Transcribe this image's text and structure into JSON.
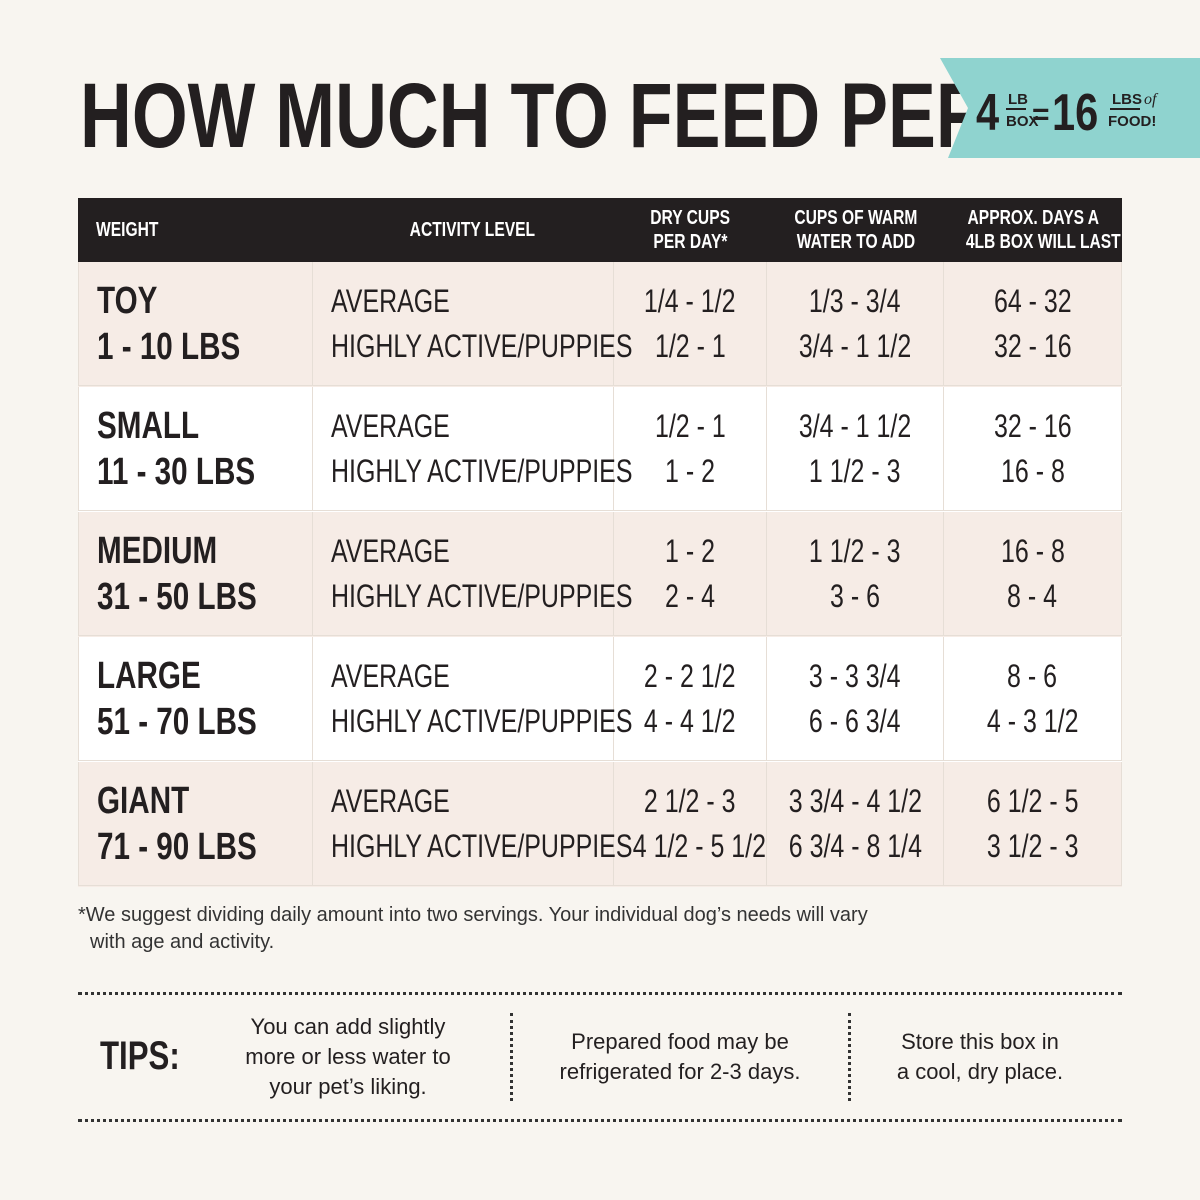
{
  "title": "HOW MUCH TO FEED PER DAY",
  "badge": {
    "num1": "4",
    "unit1_top": "LB",
    "unit1_bottom": "BOX",
    "equals": "=",
    "num2": "16",
    "unit2_top": "LBS",
    "unit2_of": "of",
    "unit2_bottom": "FOOD!"
  },
  "table": {
    "headers": [
      [
        "WEIGHT"
      ],
      [
        "ACTIVITY LEVEL"
      ],
      [
        "DRY CUPS",
        "PER DAY*"
      ],
      [
        "CUPS OF WARM",
        "WATER TO ADD"
      ],
      [
        "APPROX. DAYS A",
        "4LB BOX WILL LAST"
      ]
    ],
    "rows": [
      {
        "size": "TOY",
        "weight": "1 - 10 LBS",
        "levels": [
          "AVERAGE",
          "HIGHLY ACTIVE/PUPPIES"
        ],
        "dry": [
          "1/4 - 1/2",
          "1/2 - 1"
        ],
        "water": [
          "1/3 - 3/4",
          "3/4 - 1 1/2"
        ],
        "days": [
          "64 - 32",
          "32 - 16"
        ]
      },
      {
        "size": "SMALL",
        "weight": "11 - 30 LBS",
        "levels": [
          "AVERAGE",
          "HIGHLY ACTIVE/PUPPIES"
        ],
        "dry": [
          "1/2 - 1",
          "1 - 2"
        ],
        "water": [
          "3/4 - 1 1/2",
          "1 1/2 - 3"
        ],
        "days": [
          "32 - 16",
          "16 - 8"
        ]
      },
      {
        "size": "MEDIUM",
        "weight": "31 - 50 LBS",
        "levels": [
          "AVERAGE",
          "HIGHLY ACTIVE/PUPPIES"
        ],
        "dry": [
          "1 - 2",
          "2 - 4"
        ],
        "water": [
          "1 1/2 - 3",
          "3 - 6"
        ],
        "days": [
          "16 - 8",
          "8 - 4"
        ]
      },
      {
        "size": "LARGE",
        "weight": "51 - 70 LBS",
        "levels": [
          "AVERAGE",
          "HIGHLY ACTIVE/PUPPIES"
        ],
        "dry": [
          "2 - 2 1/2",
          "4 - 4 1/2"
        ],
        "water": [
          "3 - 3 3/4",
          "6 - 6 3/4"
        ],
        "days": [
          "8 - 6",
          "4 - 3 1/2"
        ]
      },
      {
        "size": "GIANT",
        "weight": "71 - 90 LBS",
        "levels": [
          "AVERAGE",
          "HIGHLY ACTIVE/PUPPIES"
        ],
        "dry": [
          "2 1/2 - 3",
          "4 1/2 - 5 1/2"
        ],
        "water": [
          "3 3/4 - 4 1/2",
          "6 3/4 - 8 1/4"
        ],
        "days": [
          "6 1/2 - 5",
          "3 1/2 - 3"
        ]
      }
    ]
  },
  "footnote": [
    "*We suggest dividing daily amount into two servings. Your individual dog’s needs will vary",
    "with age and activity."
  ],
  "tips": {
    "label": "TIPS:",
    "items": [
      [
        "You can add slightly",
        "more or less water to",
        "your pet’s liking."
      ],
      [
        "Prepared food may be",
        "refrigerated for 2-3 days."
      ],
      [
        "Store this box in",
        "a cool, dry place."
      ]
    ]
  }
}
